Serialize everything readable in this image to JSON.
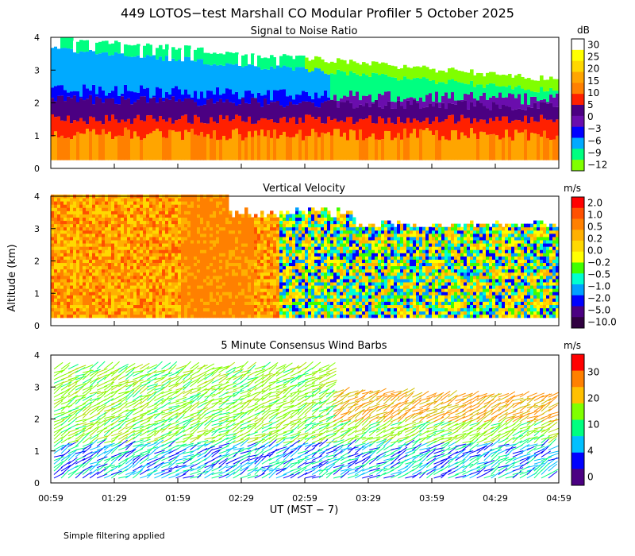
{
  "title": "449 LOTOS−test Marshall CO Modular Profiler  5 October 2025",
  "footer_note": "Simple filtering applied",
  "chart_data": [
    {
      "type": "heatmap",
      "title": "Signal to Noise Ratio",
      "ylabel": "Altitude (km)",
      "xlabel": "UT  (MST − 7)",
      "x_ticks": [
        "00:59",
        "01:29",
        "01:59",
        "02:29",
        "02:59",
        "03:29",
        "03:59",
        "04:29",
        "04:59"
      ],
      "y_ticks": [
        "0",
        "1",
        "2",
        "3",
        "4"
      ],
      "ylim": [
        0,
        4
      ],
      "colorbar": {
        "unit": "dB",
        "labels": [
          "30",
          "25",
          "20",
          "15",
          "10",
          "5",
          "0",
          "−3",
          "−6",
          "−9",
          "−12"
        ],
        "colors": [
          "#ffffff",
          "#ffff00",
          "#ffd700",
          "#ffa500",
          "#ff8000",
          "#ff2000",
          "#4b0082",
          "#6a0dad",
          "#0000ff",
          "#00aaff",
          "#00ff80",
          "#80ff00"
        ]
      }
    },
    {
      "type": "heatmap",
      "title": "Vertical Velocity",
      "ylabel": "Altitude (km)",
      "xlabel": "UT  (MST − 7)",
      "x_ticks": [
        "00:59",
        "01:29",
        "01:59",
        "02:29",
        "02:59",
        "03:29",
        "03:59",
        "04:29",
        "04:59"
      ],
      "y_ticks": [
        "0",
        "1",
        "2",
        "3",
        "4"
      ],
      "ylim": [
        0,
        4
      ],
      "colorbar": {
        "unit": "m/s",
        "labels": [
          "2.0",
          "1.0",
          "0.5",
          "0.2",
          "0.0",
          "−0.2",
          "−0.5",
          "−1.0",
          "−2.0",
          "−5.0",
          "−10.0"
        ],
        "colors": [
          "#ff0000",
          "#ff5000",
          "#ff8000",
          "#ffb000",
          "#ffd800",
          "#ffff00",
          "#40ff00",
          "#00ffd0",
          "#00a0ff",
          "#0000ff",
          "#4b0082",
          "#300040"
        ]
      }
    },
    {
      "type": "wind_barbs",
      "title": "5 Minute Consensus Wind Barbs",
      "ylabel": "Altitude (km)",
      "xlabel": "UT  (MST − 7)",
      "x_ticks": [
        "00:59",
        "01:29",
        "01:59",
        "02:29",
        "02:59",
        "03:29",
        "03:59",
        "04:29",
        "04:59"
      ],
      "y_ticks": [
        "0",
        "1",
        "2",
        "3",
        "4"
      ],
      "ylim": [
        0,
        4
      ],
      "colorbar": {
        "unit": "m/s",
        "labels": [
          "30",
          "20",
          "10",
          "4",
          "0"
        ],
        "colors": [
          "#ff0000",
          "#ff8000",
          "#ffc000",
          "#80ff00",
          "#00ff80",
          "#00c0ff",
          "#0000ff",
          "#4b0082"
        ]
      }
    }
  ]
}
